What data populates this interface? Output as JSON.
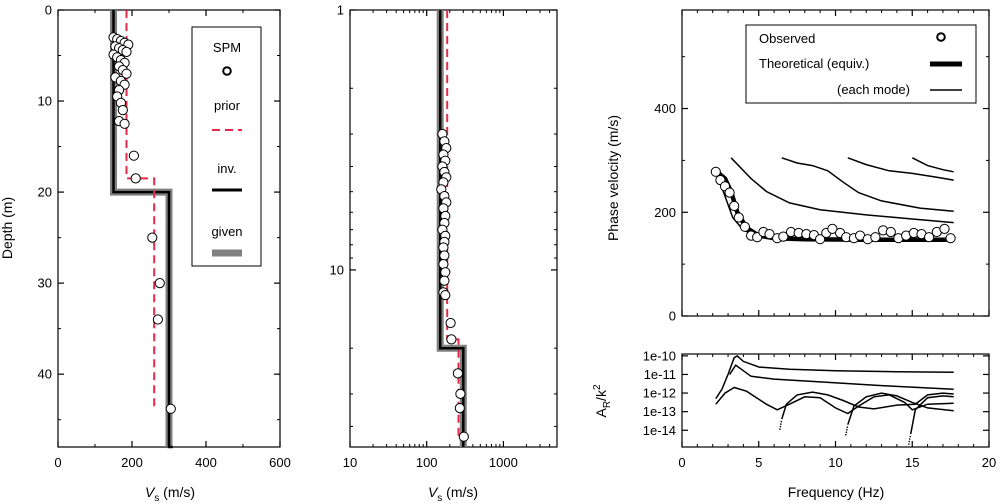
{
  "colors": {
    "prior": "#e8284b",
    "inv": "#000000",
    "given": "#808080",
    "marker": "#000000"
  },
  "chart_data": [
    {
      "type": "scatter",
      "panel": "linear-profile",
      "xlabel_main": "V",
      "xlabel_sub": "s",
      "xlabel_unit": " (m/s)",
      "ylabel": "Depth (m)",
      "xlim": [
        0,
        600
      ],
      "ylim": [
        48,
        0
      ],
      "xticks": [
        "0",
        "200",
        "400",
        "600"
      ],
      "yticks": [
        "0",
        "10",
        "20",
        "30",
        "40"
      ],
      "legend": {
        "spm": "SPM",
        "prior": "prior",
        "inv": "inv.",
        "given": "given"
      },
      "series": [
        {
          "name": "SPM",
          "points": [
            [
              150,
              3.0
            ],
            [
              160,
              3.2
            ],
            [
              170,
              3.4
            ],
            [
              180,
              3.6
            ],
            [
              190,
              3.8
            ],
            [
              155,
              4.0
            ],
            [
              165,
              4.2
            ],
            [
              175,
              4.4
            ],
            [
              185,
              4.6
            ],
            [
              150,
              4.9
            ],
            [
              160,
              5.2
            ],
            [
              170,
              5.5
            ],
            [
              180,
              5.8
            ],
            [
              165,
              6.2
            ],
            [
              175,
              6.6
            ],
            [
              185,
              7.0
            ],
            [
              155,
              7.4
            ],
            [
              170,
              7.8
            ],
            [
              180,
              8.2
            ],
            [
              165,
              8.8
            ],
            [
              160,
              9.5
            ],
            [
              170,
              10.2
            ],
            [
              175,
              11.0
            ],
            [
              165,
              12.2
            ],
            [
              180,
              12.5
            ],
            [
              205,
              16.0
            ],
            [
              210,
              18.5
            ],
            [
              255,
              25.0
            ],
            [
              275,
              30.0
            ],
            [
              270,
              34.0
            ],
            [
              305,
              43.8
            ]
          ]
        },
        {
          "name": "prior",
          "profile": [
            [
              185,
              0
            ],
            [
              185,
              18.5
            ],
            [
              260,
              18.5
            ],
            [
              260,
              44
            ]
          ]
        },
        {
          "name": "inv.",
          "profile": [
            [
              150,
              0
            ],
            [
              150,
              20
            ],
            [
              300,
              20
            ],
            [
              300,
              48
            ],
            [
              310,
              48
            ]
          ]
        },
        {
          "name": "given",
          "profile": [
            [
              150,
              0
            ],
            [
              150,
              20
            ],
            [
              300,
              20
            ],
            [
              300,
              48
            ]
          ]
        }
      ]
    },
    {
      "type": "scatter",
      "panel": "log-profile",
      "xscale": "log",
      "yscale": "log",
      "xlabel_main": "V",
      "xlabel_sub": "s",
      "xlabel_unit": " (m/s)",
      "xlim": [
        10,
        5000
      ],
      "ylim": [
        1,
        48
      ],
      "xticks": [
        "10",
        "100",
        "1000"
      ],
      "yticks": [
        "1",
        "10"
      ],
      "series": [
        {
          "name": "SPM",
          "points": [
            [
              160,
              3.0
            ],
            [
              170,
              3.2
            ],
            [
              180,
              3.4
            ],
            [
              165,
              3.6
            ],
            [
              175,
              3.8
            ],
            [
              160,
              4.0
            ],
            [
              170,
              4.2
            ],
            [
              180,
              4.4
            ],
            [
              165,
              4.6
            ],
            [
              155,
              4.9
            ],
            [
              170,
              5.2
            ],
            [
              180,
              5.5
            ],
            [
              165,
              5.8
            ],
            [
              175,
              6.2
            ],
            [
              170,
              6.6
            ],
            [
              160,
              7.0
            ],
            [
              175,
              7.4
            ],
            [
              170,
              7.8
            ],
            [
              165,
              8.2
            ],
            [
              170,
              8.8
            ],
            [
              165,
              9.5
            ],
            [
              175,
              10.2
            ],
            [
              170,
              11.0
            ],
            [
              165,
              12.2
            ],
            [
              175,
              12.5
            ],
            [
              205,
              16.0
            ],
            [
              210,
              18.5
            ],
            [
              255,
              25.0
            ],
            [
              275,
              30.0
            ],
            [
              270,
              34.0
            ],
            [
              305,
              43.8
            ]
          ]
        },
        {
          "name": "prior",
          "profile": [
            [
              185,
              1
            ],
            [
              185,
              18.5
            ],
            [
              260,
              18.5
            ],
            [
              260,
              44
            ]
          ]
        },
        {
          "name": "inv.",
          "profile": [
            [
              150,
              1
            ],
            [
              150,
              20
            ],
            [
              300,
              20
            ],
            [
              300,
              48
            ]
          ]
        },
        {
          "name": "given",
          "profile": [
            [
              150,
              1
            ],
            [
              150,
              20
            ],
            [
              300,
              20
            ],
            [
              300,
              48
            ]
          ]
        }
      ]
    },
    {
      "type": "line",
      "panel": "dispersion",
      "ylabel": "Phase velocity (m/s)",
      "xlim": [
        0,
        20
      ],
      "ylim": [
        0,
        590
      ],
      "yticks": [
        "0",
        "200",
        "400"
      ],
      "legend": {
        "observed": "Observed",
        "theoretical": "Theoretical (equiv.)",
        "mode": "(each mode)"
      },
      "series": [
        {
          "name": "Observed",
          "points": [
            [
              2.2,
              278
            ],
            [
              2.5,
              262
            ],
            [
              2.8,
              250
            ],
            [
              3.1,
              238
            ],
            [
              3.4,
              212
            ],
            [
              3.7,
              190
            ],
            [
              4.1,
              172
            ],
            [
              4.5,
              155
            ],
            [
              4.9,
              152
            ],
            [
              5.3,
              162
            ],
            [
              5.7,
              158
            ],
            [
              6.2,
              150
            ],
            [
              6.6,
              153
            ],
            [
              7.1,
              162
            ],
            [
              7.6,
              160
            ],
            [
              8.1,
              158
            ],
            [
              8.6,
              156
            ],
            [
              9.0,
              148
            ],
            [
              9.4,
              160
            ],
            [
              9.8,
              168
            ],
            [
              10.3,
              160
            ],
            [
              10.7,
              152
            ],
            [
              11.2,
              150
            ],
            [
              11.6,
              155
            ],
            [
              12.1,
              148
            ],
            [
              12.6,
              152
            ],
            [
              13.1,
              165
            ],
            [
              13.6,
              162
            ],
            [
              14.1,
              150
            ],
            [
              14.6,
              155
            ],
            [
              15.1,
              160
            ],
            [
              15.6,
              158
            ],
            [
              16.1,
              152
            ],
            [
              16.6,
              162
            ],
            [
              17.1,
              168
            ],
            [
              17.5,
              150
            ]
          ]
        },
        {
          "name": "Theoretical (equiv.)",
          "points": [
            [
              2.2,
              280
            ],
            [
              2.8,
              265
            ],
            [
              3.2,
              240
            ],
            [
              3.6,
              200
            ],
            [
              4.2,
              170
            ],
            [
              5,
              155
            ],
            [
              6,
              150
            ],
            [
              8,
              148
            ],
            [
              12,
              147
            ],
            [
              17.7,
              147
            ]
          ]
        },
        {
          "name": "mode0",
          "points": [
            [
              2.2,
              280
            ],
            [
              3.3,
              190
            ],
            [
              4,
              165
            ],
            [
              5,
              155
            ],
            [
              7,
              150
            ],
            [
              10,
              148
            ],
            [
              17.7,
              146
            ]
          ]
        },
        {
          "name": "mode1",
          "points": [
            [
              3.2,
              305
            ],
            [
              4.5,
              265
            ],
            [
              5.5,
              240
            ],
            [
              7,
              218
            ],
            [
              9,
              205
            ],
            [
              12,
              195
            ],
            [
              15,
              187
            ],
            [
              17.7,
              180
            ]
          ]
        },
        {
          "name": "mode2",
          "points": [
            [
              6.5,
              305
            ],
            [
              7.5,
              295
            ],
            [
              8.5,
              290
            ],
            [
              9.5,
              280
            ],
            [
              10.5,
              258
            ],
            [
              11.5,
              238
            ],
            [
              13,
              222
            ],
            [
              15.5,
              208
            ],
            [
              17.7,
              202
            ]
          ]
        },
        {
          "name": "mode3",
          "points": [
            [
              10.8,
              305
            ],
            [
              12,
              292
            ],
            [
              13.5,
              280
            ],
            [
              15,
              275
            ],
            [
              16.5,
              268
            ],
            [
              17.7,
              262
            ]
          ]
        },
        {
          "name": "mode4",
          "points": [
            [
              15,
              305
            ],
            [
              16,
              290
            ],
            [
              17,
              282
            ],
            [
              17.7,
              278
            ]
          ]
        }
      ]
    },
    {
      "type": "line",
      "panel": "amplitude",
      "yscale": "log",
      "xlabel": "Frequency (Hz)",
      "ylabel_main": "A",
      "ylabel_sub": "R",
      "ylabel_rest": "/k",
      "ylabel_sup": "2",
      "xlim": [
        0,
        20
      ],
      "ylim": [
        -14.9,
        -9.9
      ],
      "xticks": [
        "0",
        "5",
        "10",
        "15",
        "20"
      ],
      "yticks": [
        "1e-10",
        "1e-11",
        "1e-12",
        "1e-13",
        "1e-14"
      ],
      "series": [
        {
          "name": "mode0",
          "points": [
            [
              2.2,
              -12.3
            ],
            [
              2.6,
              -11.8
            ],
            [
              3.0,
              -11.0
            ],
            [
              3.4,
              -10.1
            ],
            [
              3.6,
              -10.0
            ],
            [
              4,
              -10.3
            ],
            [
              5,
              -10.6
            ],
            [
              7,
              -10.72
            ],
            [
              10,
              -10.8
            ],
            [
              14,
              -10.85
            ],
            [
              17.7,
              -10.88
            ]
          ]
        },
        {
          "name": "mode1",
          "points": [
            [
              3.1,
              -11.0
            ],
            [
              3.5,
              -10.5
            ],
            [
              4.5,
              -11.1
            ],
            [
              6,
              -11.25
            ],
            [
              9,
              -11.4
            ],
            [
              13,
              -11.6
            ],
            [
              17.7,
              -11.8
            ]
          ]
        },
        {
          "name": "mode2",
          "points": [
            [
              2.2,
              -12.6
            ],
            [
              2.8,
              -12.0
            ],
            [
              3.4,
              -11.7
            ],
            [
              4.2,
              -11.9
            ],
            [
              5.5,
              -12.6
            ],
            [
              6.2,
              -12.9
            ],
            [
              7,
              -12.6
            ],
            [
              8,
              -12.2
            ],
            [
              9,
              -12.25
            ],
            [
              10,
              -12.8
            ],
            [
              10.8,
              -13.1
            ],
            [
              11.5,
              -12.7
            ],
            [
              12.5,
              -12.2
            ],
            [
              13.5,
              -12.1
            ],
            [
              14.5,
              -12.5
            ],
            [
              15,
              -12.9
            ],
            [
              16,
              -12.6
            ],
            [
              17.7,
              -12.55
            ]
          ]
        },
        {
          "name": "mode3",
          "points": [
            [
              6.5,
              -13.4
            ],
            [
              6.8,
              -12.6
            ],
            [
              7.5,
              -12.1
            ],
            [
              8.5,
              -11.95
            ],
            [
              9.5,
              -12.1
            ],
            [
              10.5,
              -12.4
            ],
            [
              11.5,
              -12.75
            ],
            [
              12.5,
              -12.85
            ],
            [
              14,
              -12.65
            ],
            [
              15.2,
              -12.6
            ],
            [
              16,
              -12.1
            ],
            [
              17,
              -12.0
            ],
            [
              17.7,
              -12.05
            ]
          ]
        },
        {
          "name": "mode4",
          "points": [
            [
              10.8,
              -13.7
            ],
            [
              11.2,
              -12.7
            ],
            [
              12,
              -12.2
            ],
            [
              13,
              -12.0
            ],
            [
              14,
              -12.15
            ],
            [
              15,
              -12.5
            ],
            [
              16,
              -12.8
            ],
            [
              17.7,
              -12.95
            ]
          ]
        },
        {
          "name": "mode5",
          "points": [
            [
              14.9,
              -14.2
            ],
            [
              15.2,
              -12.9
            ],
            [
              16,
              -12.25
            ],
            [
              17,
              -12.15
            ],
            [
              17.7,
              -12.2
            ]
          ]
        }
      ]
    }
  ]
}
